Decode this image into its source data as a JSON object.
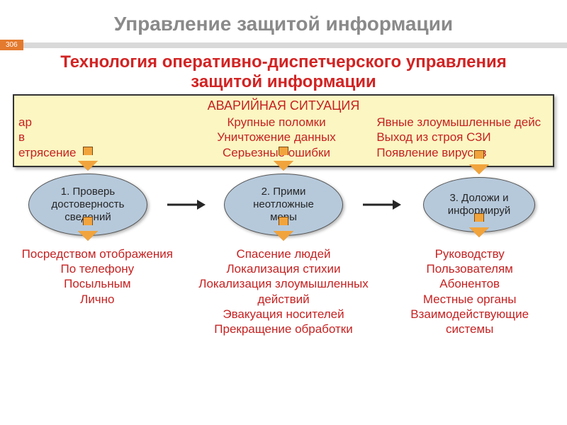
{
  "colors": {
    "title": "#8a8a8a",
    "accent": "#e47a2e",
    "subtitle": "#d22323",
    "box_bg": "#fbf6c2",
    "box_border": "#333333",
    "red_text": "#c62222",
    "bubble_fill": "#b6c9db",
    "bubble_text": "#262626",
    "arrow_fill": "#f2a43c",
    "arrow_border": "#7a4a12",
    "harrow": "#262626",
    "page_badge_bg": "#e47a2e"
  },
  "layout": {
    "bubble_w": 168,
    "bubble_h": 88,
    "bubble3_w": 158,
    "bubble3_h": 78
  },
  "title": "Управление защитой информации",
  "page_number": "306",
  "subtitle_l1": "Технология оперативно-диспетчерского управления",
  "subtitle_l2": "защитой информации",
  "situation": {
    "heading": "АВАРИЙНАЯ СИТУАЦИЯ",
    "col1": "ар\nв\nетрясение",
    "col2": "Крупные поломки\nУничтожение данных\nСерьезные ошибки",
    "col3": "Явные злоумышленные дейс\nВыход из строя СЗИ\nПоявление вирусов"
  },
  "steps": {
    "s1": "1. Проверь\nдостоверность\nсведений",
    "s2": "2. Прими\nнеотложные\nмеры",
    "s3": "3. Доложи и\nинформируй"
  },
  "details": {
    "d1": "Посредством отображения\nПо телефону\nПосыльным\nЛично",
    "d2": "Спасение людей\nЛокализация стихии\nЛокализация злоумышленных\nдействий\nЭвакуация носителей\nПрекращение обработки",
    "d3": "Руководству\nПользователям\nАбонентов\nМестные органы\nВзаимодействующие\nсистемы"
  }
}
